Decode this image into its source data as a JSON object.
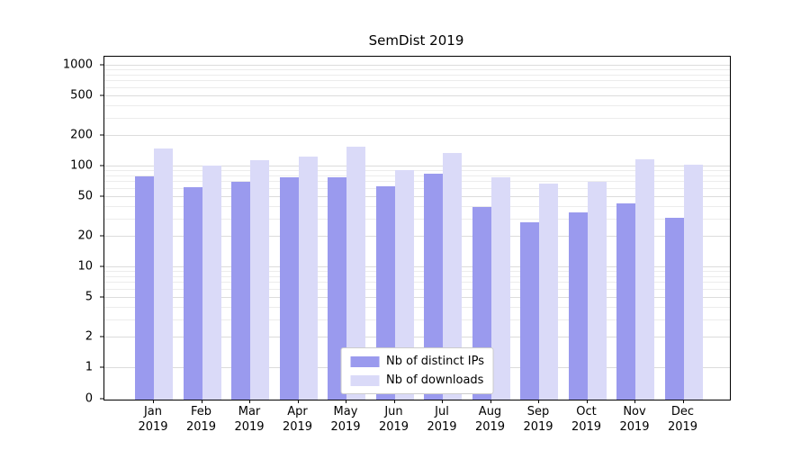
{
  "chart_data": {
    "type": "bar",
    "title": "SemDist 2019",
    "yscale": "symlog",
    "ylim": [
      0,
      1000
    ],
    "yticks": [
      0,
      1,
      2,
      5,
      10,
      20,
      50,
      100,
      200,
      500,
      1000
    ],
    "grid": true,
    "legend_position": "lower center",
    "categories": [
      "Jan 2019",
      "Feb 2019",
      "Mar 2019",
      "Apr 2019",
      "May 2019",
      "Jun 2019",
      "Jul 2019",
      "Aug 2019",
      "Sep 2019",
      "Oct 2019",
      "Nov 2019",
      "Dec 2019"
    ],
    "series": [
      {
        "name": "Nb of distinct IPs",
        "color": "#9a9aee",
        "values": [
          80,
          62,
          70,
          78,
          78,
          63,
          84,
          40,
          28,
          35,
          43,
          31
        ]
      },
      {
        "name": "Nb of downloads",
        "color": "#dadaf8",
        "values": [
          150,
          103,
          115,
          125,
          158,
          93,
          135,
          78,
          68,
          70,
          117,
          105
        ]
      }
    ]
  }
}
